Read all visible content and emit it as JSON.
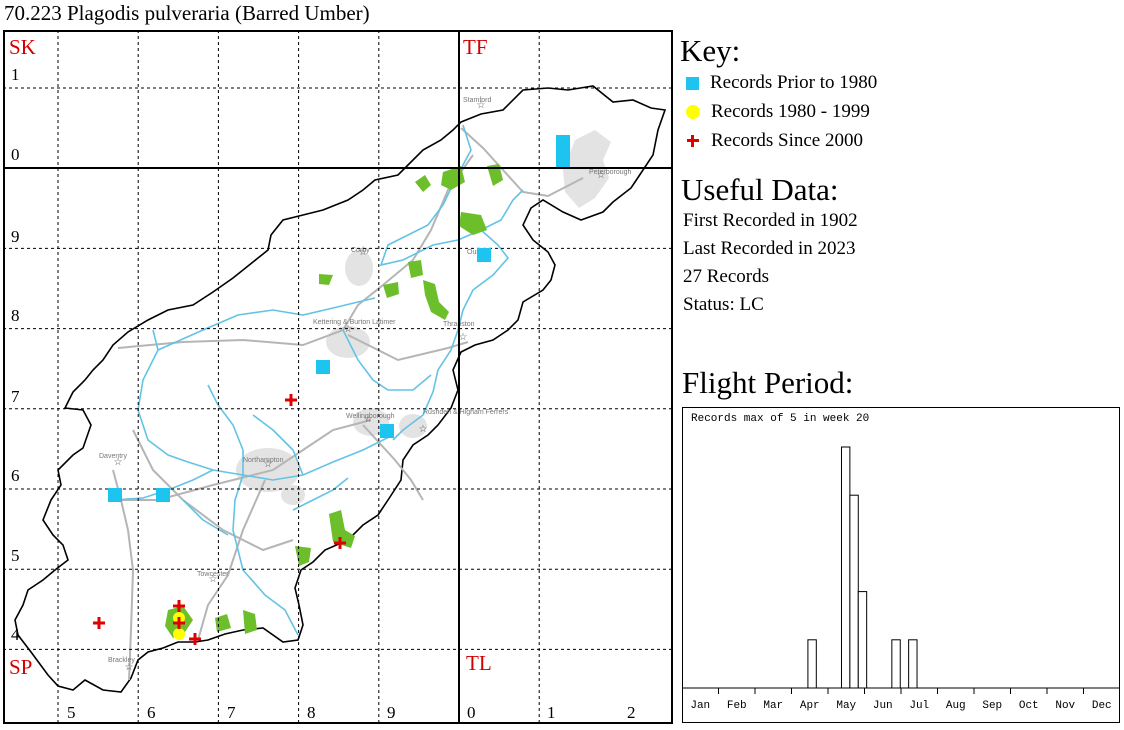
{
  "title": "70.223 Plagodis pulveraria (Barred Umber)",
  "key": {
    "heading": "Key:",
    "items": [
      {
        "label": "Records Prior to 1980",
        "symbol": "square",
        "color": "#1cc4ef"
      },
      {
        "label": "Records 1980 - 1999",
        "symbol": "circle",
        "color": "#ffff00"
      },
      {
        "label": "Records Since 2000",
        "symbol": "plus",
        "color": "#e00000"
      }
    ]
  },
  "useful": {
    "heading": "Useful Data:",
    "first_recorded": "First Recorded in 1902",
    "last_recorded": "Last Recorded in 2023",
    "records": "27 Records",
    "status": "Status: LC"
  },
  "flight": {
    "heading": "Flight Period:",
    "note": "Records max of 5 in week 20"
  },
  "map": {
    "grid_squares": {
      "sk": "SK",
      "tf": "TF",
      "sp": "SP",
      "tl": "TL"
    },
    "northings": [
      "1",
      "0",
      "9",
      "8",
      "7",
      "6",
      "5",
      "4"
    ],
    "eastings": [
      "5",
      "6",
      "7",
      "8",
      "9",
      "0",
      "1",
      "2"
    ],
    "places": [
      "Stamford",
      "Peterborough",
      "Oundle",
      "Corby",
      "Kettering & Burton Latimer",
      "Thrapston",
      "Wellingborough",
      "Rushden & Higham Ferrers",
      "Daventry",
      "Northampton",
      "Towcester",
      "Brackley"
    ]
  },
  "chart_data": {
    "type": "bar",
    "title": "",
    "note": "Records max of 5 in week 20",
    "x_unit": "week of year",
    "month_labels": [
      "Jan",
      "Feb",
      "Mar",
      "Apr",
      "May",
      "Jun",
      "Jul",
      "Aug",
      "Sep",
      "Oct",
      "Nov",
      "Dec"
    ],
    "weeks": [
      16,
      19,
      20,
      21,
      22,
      26,
      28
    ],
    "values": [
      1,
      0,
      5,
      4,
      2,
      1,
      1
    ],
    "ylim": [
      0,
      5
    ],
    "grid": false
  }
}
